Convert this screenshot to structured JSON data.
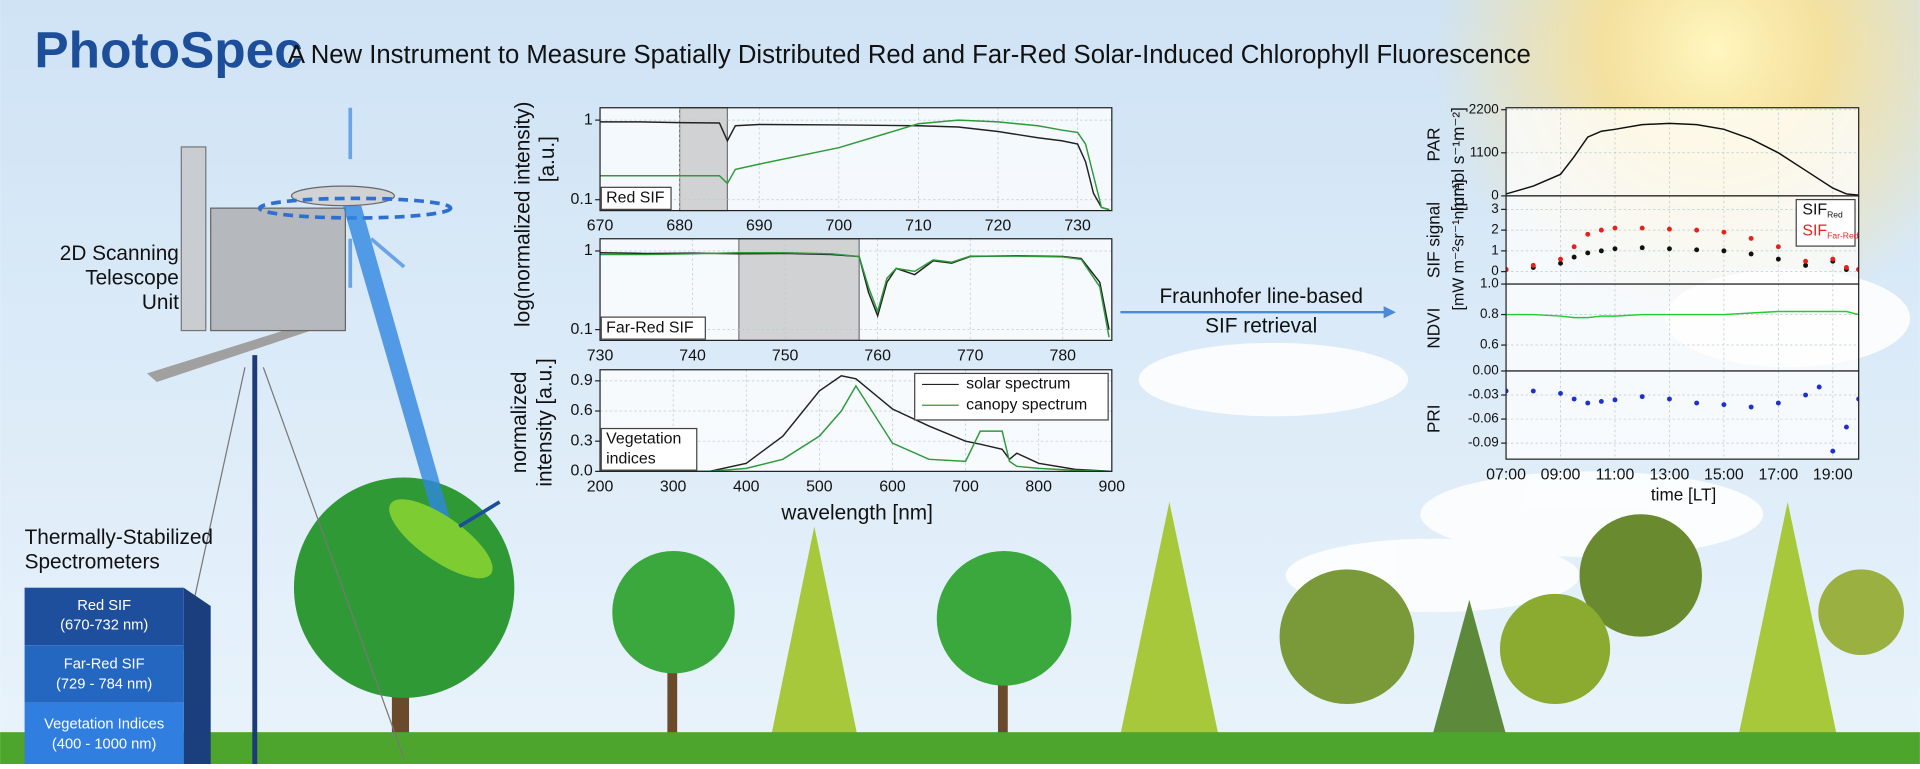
{
  "logo": "PhotoSpec",
  "title": "A New Instrument to Measure Spatially Distributed Red and Far-Red Solar-Induced Chlorophyll Fluorescence",
  "telescope_label": [
    "2D Scanning",
    "Telescope",
    "Unit"
  ],
  "spectrometer_label": [
    "Thermally-Stabilized",
    "Spectrometers"
  ],
  "spectrometers": [
    {
      "name": "Red SIF",
      "range": "(670-732 nm)"
    },
    {
      "name": "Far-Red SIF",
      "range": "(729 - 784 nm)"
    },
    {
      "name": "Vegetation Indices",
      "range": "(400 - 1000 nm)"
    }
  ],
  "retrieval_label": [
    "Fraunhofer line-based",
    "SIF retrieval"
  ],
  "spectra_ylabel": [
    "log(normalized intensity)",
    "[a.u.]"
  ],
  "veg_ylabel": [
    "normalized",
    "intensity [a.u.]"
  ],
  "wavelength_label": "wavelength [nm]",
  "time_ylabels": {
    "par": [
      "PAR",
      "[μmol s⁻¹m⁻²]"
    ],
    "sif": [
      "SIF signal",
      "[mW m⁻²sr⁻¹nm⁻¹]"
    ],
    "ndvi": "NDVI",
    "pri": "PRI"
  },
  "time_label": "time [LT]",
  "chart_data": [
    {
      "type": "line",
      "label": [
        "Red SIF"
      ],
      "log_y": true,
      "grid": true,
      "highlight": [
        680,
        686
      ],
      "xlim": [
        670,
        734.3
      ],
      "xticks": [
        670,
        680,
        690,
        700,
        710,
        720,
        730
      ],
      "ylim": [
        0.073,
        1.43
      ],
      "yticks": [
        0.1,
        1
      ],
      "x": [
        670,
        675,
        680,
        685,
        686,
        687,
        690,
        700,
        710,
        715,
        720,
        725,
        728,
        730,
        731,
        732,
        733,
        734
      ],
      "series": [
        {
          "color": "#222222",
          "values": [
            0.95,
            0.95,
            0.93,
            0.92,
            0.55,
            0.85,
            0.88,
            0.87,
            0.85,
            0.82,
            0.72,
            0.6,
            0.55,
            0.5,
            0.3,
            0.12,
            0.08,
            0.075
          ]
        },
        {
          "color": "#2e9a3a",
          "values": [
            0.2,
            0.2,
            0.2,
            0.2,
            0.16,
            0.24,
            0.28,
            0.45,
            0.9,
            1.0,
            0.95,
            0.85,
            0.75,
            0.7,
            0.5,
            0.2,
            0.08,
            0.075
          ]
        }
      ]
    },
    {
      "type": "line",
      "label": [
        "Far-Red SIF"
      ],
      "log_y": true,
      "grid": true,
      "highlight": [
        745,
        758
      ],
      "xlim": [
        730,
        785.3
      ],
      "xticks": [
        730,
        740,
        750,
        760,
        770,
        780
      ],
      "ylim": [
        0.073,
        1.43
      ],
      "yticks": [
        0.1,
        1
      ],
      "x": [
        730,
        735,
        740,
        745,
        750,
        755,
        758,
        759,
        760,
        761,
        762,
        764,
        766,
        768,
        770,
        775,
        780,
        782,
        784,
        785
      ],
      "series": [
        {
          "color": "#222222",
          "values": [
            0.95,
            0.93,
            0.94,
            0.92,
            0.93,
            0.9,
            0.85,
            0.3,
            0.15,
            0.4,
            0.6,
            0.5,
            0.75,
            0.7,
            0.85,
            0.87,
            0.85,
            0.8,
            0.4,
            0.1
          ]
        },
        {
          "color": "#2e9a3a",
          "values": [
            0.9,
            0.9,
            0.92,
            0.95,
            0.95,
            0.92,
            0.85,
            0.35,
            0.17,
            0.45,
            0.6,
            0.55,
            0.77,
            0.72,
            0.86,
            0.86,
            0.84,
            0.78,
            0.35,
            0.08
          ]
        }
      ]
    },
    {
      "type": "line",
      "label": [
        "Vegetation",
        "indices"
      ],
      "grid": true,
      "xlim": [
        200,
        900
      ],
      "xticks": [
        200,
        300,
        400,
        500,
        600,
        700,
        800,
        900
      ],
      "ylim": [
        0,
        1.01
      ],
      "yticks": [
        {
          "value": 0,
          "label": "0.0"
        },
        0.3,
        0.6,
        0.9
      ],
      "x": [
        200,
        300,
        350,
        400,
        450,
        500,
        530,
        550,
        600,
        650,
        700,
        720,
        750,
        760,
        770,
        800,
        850,
        900
      ],
      "series": [
        {
          "name": "solar spectrum",
          "color": "#222222",
          "values": [
            0,
            0,
            0,
            0.08,
            0.35,
            0.8,
            0.95,
            0.92,
            0.62,
            0.45,
            0.3,
            0.27,
            0.22,
            0.12,
            0.18,
            0.08,
            0.02,
            0
          ]
        },
        {
          "name": "canopy spectrum",
          "color": "#2e9a3a",
          "values": [
            0,
            0,
            0,
            0.03,
            0.12,
            0.35,
            0.6,
            0.85,
            0.28,
            0.12,
            0.1,
            0.4,
            0.4,
            0.1,
            0.05,
            0.03,
            0.01,
            0
          ]
        }
      ]
    },
    {
      "type": "line",
      "grid": true,
      "xlim": [
        7,
        19.95
      ],
      "ylim": [
        0,
        2250
      ],
      "yticks": [
        0,
        1100,
        2200
      ],
      "x": [
        7,
        8,
        9,
        9.5,
        10,
        10.5,
        11,
        12,
        13,
        14,
        15,
        16,
        17,
        18,
        19,
        19.5,
        19.95
      ],
      "series": [
        {
          "color": "#111111",
          "values": [
            50,
            250,
            550,
            1000,
            1500,
            1650,
            1700,
            1820,
            1850,
            1820,
            1700,
            1450,
            1100,
            650,
            200,
            50,
            20
          ]
        }
      ]
    },
    {
      "type": "scatter",
      "grid": true,
      "xlim": [
        7,
        19.95
      ],
      "ylim": [
        -0.6,
        3.65
      ],
      "yticks": [
        0,
        1,
        2,
        3
      ],
      "x": [
        7,
        8,
        9,
        9.5,
        10,
        10.5,
        11,
        12,
        13,
        14,
        15,
        16,
        17,
        18,
        19,
        19.5,
        19.95
      ],
      "series": [
        {
          "name": "SIF",
          "sub": "Red",
          "color": "#111111",
          "values": [
            0.1,
            0.2,
            0.4,
            0.7,
            0.9,
            1.0,
            1.1,
            1.15,
            1.1,
            1.05,
            1.0,
            0.85,
            0.6,
            0.3,
            0.5,
            0.1,
            0.1
          ]
        },
        {
          "name": "SIF",
          "sub": "Far-Red",
          "color": "#e8201c",
          "values": [
            0.1,
            0.3,
            0.6,
            1.2,
            1.8,
            2.0,
            2.1,
            2.1,
            2.05,
            2.0,
            1.9,
            1.6,
            1.2,
            0.5,
            0.6,
            0.2,
            0.1
          ]
        }
      ]
    },
    {
      "type": "line",
      "grid": true,
      "xlim": [
        7,
        19.95
      ],
      "ylim": [
        0.43,
        1.0
      ],
      "yticks": [
        0.6,
        0.8,
        {
          "value": 1,
          "label": "1.0"
        }
      ],
      "x": [
        7,
        8,
        9,
        9.5,
        10,
        10.5,
        11,
        12,
        13,
        14,
        15,
        16,
        17,
        18,
        19,
        19.5,
        19.95
      ],
      "series": [
        {
          "color": "#22cc33",
          "values": [
            0.8,
            0.8,
            0.79,
            0.78,
            0.78,
            0.79,
            0.79,
            0.8,
            0.8,
            0.8,
            0.8,
            0.81,
            0.82,
            0.82,
            0.82,
            0.82,
            0.8
          ]
        }
      ]
    },
    {
      "type": "scatter",
      "grid": true,
      "xlim": [
        7,
        19.95
      ],
      "ylim": [
        -0.11,
        0
      ],
      "yticks": [
        {
          "value": 0,
          "label": "0.00"
        },
        -0.03,
        -0.06,
        -0.09
      ],
      "xticks": [
        {
          "value": 7,
          "label": "07:00"
        },
        {
          "value": 9,
          "label": "09:00"
        },
        {
          "value": 11,
          "label": "11:00"
        },
        {
          "value": 13,
          "label": "13:00"
        },
        {
          "value": 15,
          "label": "15:00"
        },
        {
          "value": 17,
          "label": "17:00"
        },
        {
          "value": 19,
          "label": "19:00"
        }
      ],
      "x": [
        7,
        8,
        9,
        9.5,
        10,
        10.5,
        11,
        12,
        13,
        14,
        15,
        16,
        17,
        18,
        18.5,
        19,
        19.5,
        19.95
      ],
      "series": [
        {
          "color": "#1f2fd0",
          "values": [
            -0.025,
            -0.025,
            -0.028,
            -0.035,
            -0.04,
            -0.038,
            -0.036,
            -0.032,
            -0.035,
            -0.04,
            -0.042,
            -0.045,
            -0.04,
            -0.03,
            -0.02,
            -0.1,
            -0.07,
            -0.035
          ]
        }
      ]
    }
  ]
}
